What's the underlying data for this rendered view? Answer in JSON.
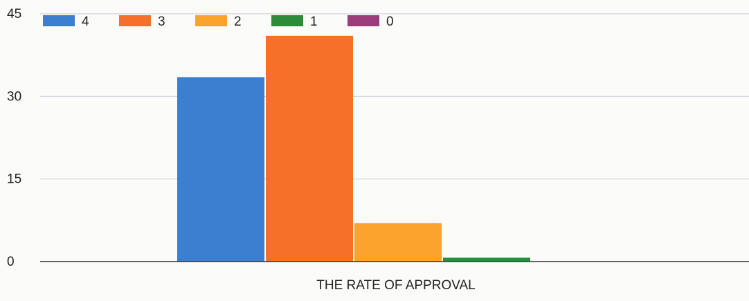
{
  "chart_data": {
    "type": "bar",
    "categories": [
      "THE RATE OF APPROVAL"
    ],
    "series": [
      {
        "name": "4",
        "values": [
          33.5
        ],
        "color": "#3a7fd0"
      },
      {
        "name": "3",
        "values": [
          41
        ],
        "color": "#f6702a"
      },
      {
        "name": "2",
        "values": [
          7
        ],
        "color": "#fba32d"
      },
      {
        "name": "1",
        "values": [
          0.7
        ],
        "color": "#2e8b3a"
      },
      {
        "name": "0",
        "values": [
          0
        ],
        "color": "#9b3d7a"
      }
    ],
    "ylim": [
      0,
      45
    ],
    "yticks": [
      0,
      15,
      30,
      45
    ],
    "grid": true,
    "legend": "top-left",
    "title": "",
    "xlabel": "",
    "ylabel": ""
  }
}
